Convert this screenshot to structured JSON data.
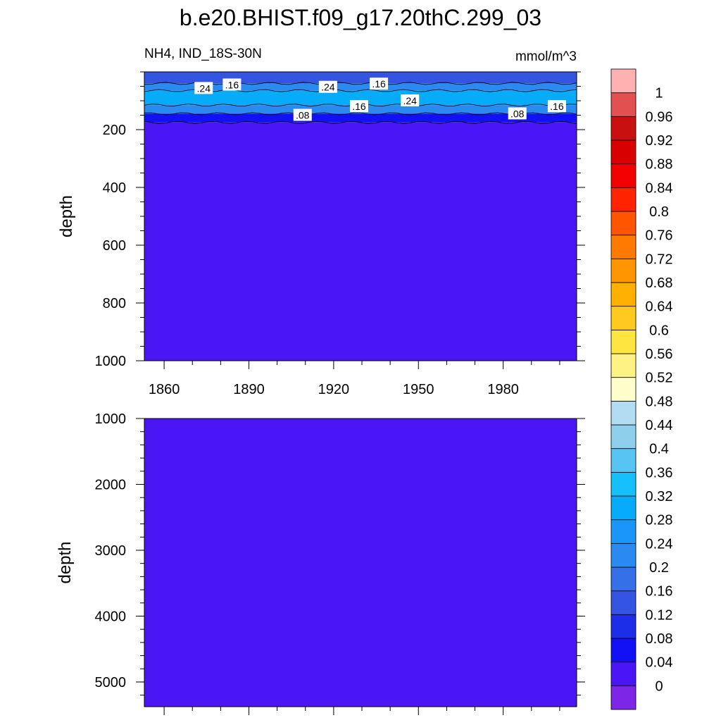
{
  "title": "b.e20.BHIST.f09_g17.20thC.299_03",
  "subtitle_left": "NH4, IND_18S-30N",
  "subtitle_right": "mmol/m^3",
  "colorbar": {
    "labels": [
      "0",
      "0.04",
      "0.08",
      "0.12",
      "0.16",
      "0.2",
      "0.24",
      "0.28",
      "0.32",
      "0.36",
      "0.4",
      "0.44",
      "0.48",
      "0.52",
      "0.56",
      "0.6",
      "0.64",
      "0.68",
      "0.72",
      "0.76",
      "0.8",
      "0.84",
      "0.88",
      "0.92",
      "0.96",
      "1"
    ],
    "colors": [
      "#7e26e6",
      "#4a16f5",
      "#1210f5",
      "#1c2ee8",
      "#3454e2",
      "#3670e8",
      "#2a8af0",
      "#1a96f8",
      "#06acfa",
      "#16c0fa",
      "#58c4f4",
      "#8ed0ec",
      "#b2dcf2",
      "#ffffcc",
      "#fff285",
      "#ffe540",
      "#ffc91e",
      "#ffb000",
      "#ff9500",
      "#ff7a00",
      "#ff5500",
      "#ff2300",
      "#f20000",
      "#d80000",
      "#c81010",
      "#e25050",
      "#ffb0b0"
    ]
  },
  "chart_data": [
    {
      "type": "heatmap",
      "panel": "upper",
      "title": "NH4, IND_18S-30N",
      "units": "mmol/m^3",
      "xlabel": "",
      "ylabel": "depth",
      "x_ticks": [
        1860,
        1890,
        1920,
        1950,
        1980
      ],
      "y_ticks": [
        200,
        400,
        600,
        800,
        1000
      ],
      "xlim": [
        1853,
        2006
      ],
      "ylim": [
        0,
        1000
      ],
      "y_inverted": true,
      "layers": [
        {
          "depth_range": [
            0,
            40
          ],
          "value": 0.14
        },
        {
          "depth_range": [
            40,
            65
          ],
          "value": 0.22
        },
        {
          "depth_range": [
            65,
            115
          ],
          "value": 0.3
        },
        {
          "depth_range": [
            115,
            145
          ],
          "value": 0.2
        },
        {
          "depth_range": [
            145,
            175
          ],
          "value": 0.06
        },
        {
          "depth_range": [
            175,
            1000
          ],
          "value": 0.02
        }
      ],
      "contour_labels": [
        {
          "text": ".24",
          "x": 1874,
          "depth": 57
        },
        {
          "text": ".16",
          "x": 1884,
          "depth": 45
        },
        {
          "text": ".24",
          "x": 1918,
          "depth": 53
        },
        {
          "text": ".16",
          "x": 1936,
          "depth": 42
        },
        {
          "text": ".16",
          "x": 1929,
          "depth": 120
        },
        {
          "text": ".24",
          "x": 1947,
          "depth": 100
        },
        {
          "text": ".08",
          "x": 1909,
          "depth": 150
        },
        {
          "text": ".08",
          "x": 1985,
          "depth": 145
        },
        {
          "text": ".16",
          "x": 1999,
          "depth": 120
        }
      ]
    },
    {
      "type": "heatmap",
      "panel": "lower",
      "xlabel": "",
      "ylabel": "depth",
      "y_ticks": [
        1000,
        2000,
        3000,
        4000,
        5000
      ],
      "xlim": [
        1853,
        2006
      ],
      "ylim": [
        1000,
        5375
      ],
      "y_inverted": true,
      "layers": [
        {
          "depth_range": [
            1000,
            5375
          ],
          "value": 0.02
        }
      ]
    }
  ]
}
